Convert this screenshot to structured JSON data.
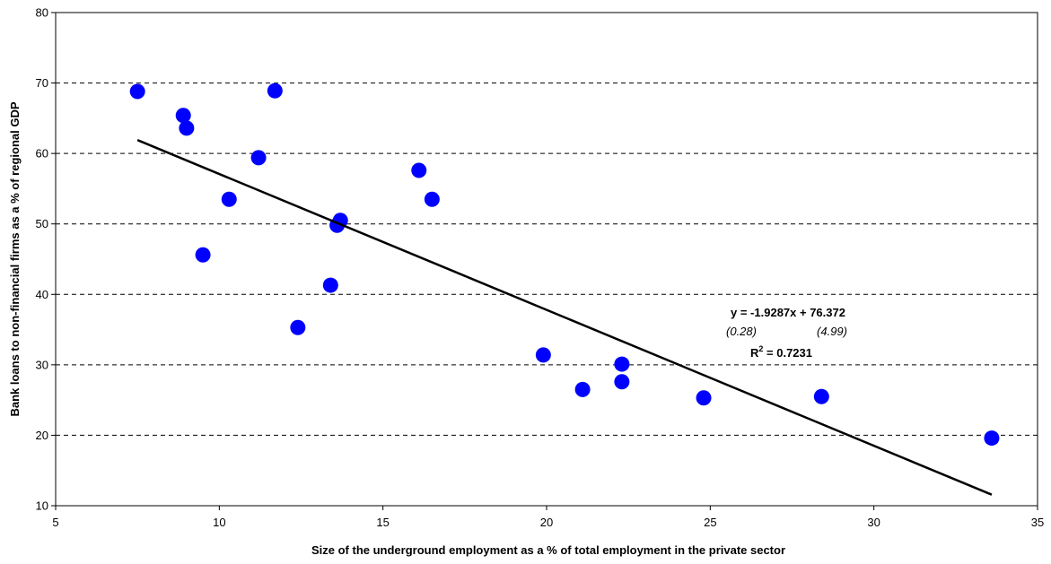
{
  "chart_data": {
    "type": "scatter",
    "title": "",
    "xlabel": "Size of the underground employment as a % of total employment in the private sector",
    "ylabel": "Bank loans to non-financial firms as a % of regional GDP",
    "xlim": [
      5,
      35
    ],
    "ylim": [
      10,
      80
    ],
    "x_ticks": [
      "5",
      "10",
      "15",
      "20",
      "25",
      "30",
      "35"
    ],
    "y_ticks": [
      "10",
      "20",
      "30",
      "40",
      "50",
      "60",
      "70",
      "80"
    ],
    "grid": "horizontal dashed",
    "legend": "none",
    "point_color": "#0000ff",
    "points": [
      {
        "x": 7.5,
        "y": 68.8
      },
      {
        "x": 8.9,
        "y": 65.4
      },
      {
        "x": 9.0,
        "y": 63.6
      },
      {
        "x": 9.5,
        "y": 45.6
      },
      {
        "x": 10.3,
        "y": 53.5
      },
      {
        "x": 11.2,
        "y": 59.4
      },
      {
        "x": 11.7,
        "y": 68.9
      },
      {
        "x": 12.4,
        "y": 35.3
      },
      {
        "x": 13.4,
        "y": 41.3
      },
      {
        "x": 13.6,
        "y": 49.8
      },
      {
        "x": 13.7,
        "y": 50.5
      },
      {
        "x": 16.1,
        "y": 57.6
      },
      {
        "x": 16.5,
        "y": 53.5
      },
      {
        "x": 19.9,
        "y": 31.4
      },
      {
        "x": 21.1,
        "y": 26.5
      },
      {
        "x": 22.3,
        "y": 30.1
      },
      {
        "x": 22.3,
        "y": 27.6
      },
      {
        "x": 24.8,
        "y": 25.3
      },
      {
        "x": 28.4,
        "y": 25.5
      },
      {
        "x": 33.6,
        "y": 19.6
      }
    ],
    "trendline": {
      "slope": -1.9287,
      "intercept": 76.372,
      "x_range": [
        7.5,
        33.6
      ],
      "equation": "y = -1.9287x + 76.372",
      "se_slope": "(0.28)",
      "se_intercept": "(4.99)",
      "r2_label": "R",
      "r2_sup": "2",
      "r2_value": " = 0.7231"
    }
  }
}
